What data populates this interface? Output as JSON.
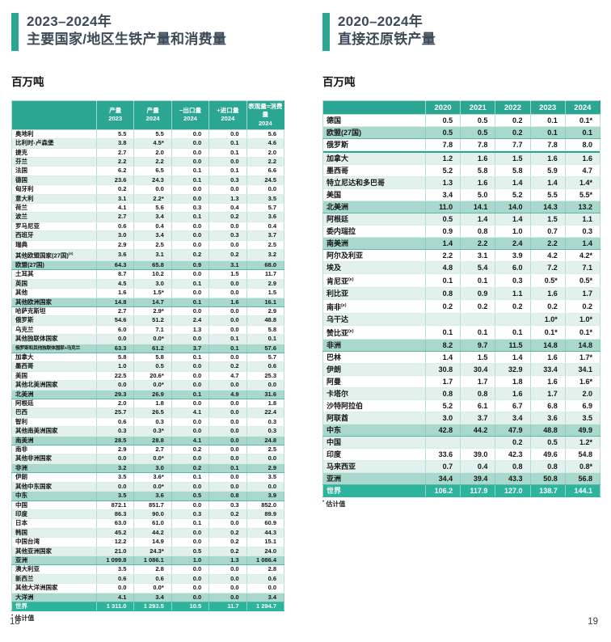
{
  "page": {
    "left_number": "18",
    "right_number": "19"
  },
  "colors": {
    "accent_teal": "#2aa693",
    "total_row_teal": "#2db49c",
    "subtotal_row": "#a9d8cc",
    "light_row": "#e3f1ec",
    "title_text": "#3d4a57"
  },
  "left": {
    "title_line1": "2023–2024年",
    "title_line2": "主要国家/地区生铁产量和消费量",
    "unit": "百万吨",
    "footnote_mark": "*",
    "footnote_text": " 估计值",
    "table": {
      "columns": [
        {
          "l1": "产量",
          "l2": "2023"
        },
        {
          "l1": "产量",
          "l2": "2024"
        },
        {
          "l1": "−出口量",
          "l2": "2024"
        },
        {
          "l1": "+进口量",
          "l2": "2024"
        },
        {
          "l1": "表观量=消费量",
          "l2": "2024"
        }
      ],
      "rows": [
        {
          "label": "奥地利",
          "v": [
            "5.5",
            "5.5",
            "0.0",
            "0.0",
            "5.6"
          ],
          "t": "d",
          "s": "w"
        },
        {
          "label": "比利时-卢森堡",
          "v": [
            "3.8",
            "4.5*",
            "0.0",
            "0.1",
            "4.6"
          ],
          "t": "d",
          "s": "l"
        },
        {
          "label": "捷克",
          "v": [
            "2.7",
            "2.0",
            "0.0",
            "0.1",
            "2.0"
          ],
          "t": "d",
          "s": "w"
        },
        {
          "label": "芬兰",
          "v": [
            "2.2",
            "2.2",
            "0.0",
            "0.0",
            "2.2"
          ],
          "t": "d",
          "s": "l"
        },
        {
          "label": "法国",
          "v": [
            "6.2",
            "6.5",
            "0.1",
            "0.1",
            "6.6"
          ],
          "t": "d",
          "s": "w"
        },
        {
          "label": "德国",
          "v": [
            "23.6",
            "24.3",
            "0.1",
            "0.3",
            "24.5"
          ],
          "t": "d",
          "s": "l"
        },
        {
          "label": "匈牙利",
          "v": [
            "0.2",
            "0.0",
            "0.0",
            "0.0",
            "0.0"
          ],
          "t": "d",
          "s": "w"
        },
        {
          "label": "意大利",
          "v": [
            "3.1",
            "2.2*",
            "0.0",
            "1.3",
            "3.5"
          ],
          "t": "d",
          "s": "l"
        },
        {
          "label": "荷兰",
          "v": [
            "4.1",
            "5.6",
            "0.3",
            "0.4",
            "5.7"
          ],
          "t": "d",
          "s": "w"
        },
        {
          "label": "波兰",
          "v": [
            "2.7",
            "3.4",
            "0.1",
            "0.2",
            "3.6"
          ],
          "t": "d",
          "s": "l"
        },
        {
          "label": "罗马尼亚",
          "v": [
            "0.6",
            "0.4",
            "0.0",
            "0.0",
            "0.4"
          ],
          "t": "d",
          "s": "w"
        },
        {
          "label": "西班牙",
          "v": [
            "3.0",
            "3.4",
            "0.0",
            "0.3",
            "3.7"
          ],
          "t": "d",
          "s": "l"
        },
        {
          "label": "瑞典",
          "v": [
            "2.9",
            "2.5",
            "0.0",
            "0.0",
            "2.5"
          ],
          "t": "d",
          "s": "w"
        },
        {
          "label": "其他欧盟国家(27国)",
          "sup": "(e)",
          "v": [
            "3.6",
            "3.1",
            "0.2",
            "0.2",
            "3.2"
          ],
          "t": "d",
          "s": "l"
        },
        {
          "label": "欧盟(27国)",
          "v": [
            "64.3",
            "65.8",
            "0.9",
            "3.1",
            "68.0"
          ],
          "t": "s"
        },
        {
          "label": "土耳其",
          "v": [
            "8.7",
            "10.2",
            "0.0",
            "1.5",
            "11.7"
          ],
          "t": "d",
          "s": "w"
        },
        {
          "label": "英国",
          "v": [
            "4.5",
            "3.0",
            "0.1",
            "0.0",
            "2.9"
          ],
          "t": "d",
          "s": "l"
        },
        {
          "label": "其他",
          "v": [
            "1.6",
            "1.5*",
            "0.0",
            "0.0",
            "1.5"
          ],
          "t": "d",
          "s": "w"
        },
        {
          "label": "其他欧洲国家",
          "v": [
            "14.8",
            "14.7",
            "0.1",
            "1.6",
            "16.1"
          ],
          "t": "s"
        },
        {
          "label": "哈萨克斯坦",
          "v": [
            "2.7",
            "2.9*",
            "0.0",
            "0.0",
            "2.9"
          ],
          "t": "d",
          "s": "w"
        },
        {
          "label": "俄罗斯",
          "v": [
            "54.6",
            "51.2",
            "2.4",
            "0.0",
            "48.8"
          ],
          "t": "d",
          "s": "l"
        },
        {
          "label": "乌克兰",
          "v": [
            "6.0",
            "7.1",
            "1.3",
            "0.0",
            "5.8"
          ],
          "t": "d",
          "s": "w"
        },
        {
          "label": "其他独联体国家",
          "v": [
            "0.0",
            "0.0*",
            "0.0",
            "0.1",
            "0.1"
          ],
          "t": "d",
          "s": "l"
        },
        {
          "label": "俄罗斯和其他独联体国家+乌克兰",
          "v": [
            "63.3",
            "61.2",
            "3.7",
            "0.1",
            "57.6"
          ],
          "t": "s",
          "small": true
        },
        {
          "label": "加拿大",
          "v": [
            "5.8",
            "5.8",
            "0.1",
            "0.0",
            "5.7"
          ],
          "t": "d",
          "s": "w"
        },
        {
          "label": "墨西哥",
          "v": [
            "1.0",
            "0.5",
            "0.0",
            "0.2",
            "0.6"
          ],
          "t": "d",
          "s": "l"
        },
        {
          "label": "美国",
          "v": [
            "22.5",
            "20.6*",
            "0.0",
            "4.7",
            "25.3"
          ],
          "t": "d",
          "s": "w"
        },
        {
          "label": "其他北美洲国家",
          "v": [
            "0.0",
            "0.0*",
            "0.0",
            "0.0",
            "0.0"
          ],
          "t": "d",
          "s": "l"
        },
        {
          "label": "北美洲",
          "v": [
            "29.3",
            "26.9",
            "0.1",
            "4.9",
            "31.6"
          ],
          "t": "s"
        },
        {
          "label": "阿根廷",
          "v": [
            "2.0",
            "1.8",
            "0.0",
            "0.0",
            "1.8"
          ],
          "t": "d",
          "s": "w"
        },
        {
          "label": "巴西",
          "v": [
            "25.7",
            "26.5",
            "4.1",
            "0.0",
            "22.4"
          ],
          "t": "d",
          "s": "l"
        },
        {
          "label": "智利",
          "v": [
            "0.6",
            "0.3",
            "0.0",
            "0.0",
            "0.3"
          ],
          "t": "d",
          "s": "w"
        },
        {
          "label": "其他南美洲国家",
          "v": [
            "0.3",
            "0.3*",
            "0.0",
            "0.0",
            "0.3"
          ],
          "t": "d",
          "s": "l"
        },
        {
          "label": "南美洲",
          "v": [
            "28.5",
            "28.8",
            "4.1",
            "0.0",
            "24.8"
          ],
          "t": "s"
        },
        {
          "label": "南非",
          "v": [
            "2.9",
            "2.7",
            "0.2",
            "0.0",
            "2.5"
          ],
          "t": "d",
          "s": "w"
        },
        {
          "label": "其他非洲国家",
          "v": [
            "0.0",
            "0.0*",
            "0.0",
            "0.0",
            "0.0"
          ],
          "t": "d",
          "s": "l"
        },
        {
          "label": "非洲",
          "v": [
            "3.2",
            "3.0",
            "0.2",
            "0.1",
            "2.9"
          ],
          "t": "s"
        },
        {
          "label": "伊朗",
          "v": [
            "3.5",
            "3.6*",
            "0.1",
            "0.0",
            "3.5"
          ],
          "t": "d",
          "s": "w"
        },
        {
          "label": "其他中东国家",
          "v": [
            "0.0",
            "0.0*",
            "0.0",
            "0.0",
            "0.0"
          ],
          "t": "d",
          "s": "l"
        },
        {
          "label": "中东",
          "v": [
            "3.5",
            "3.6",
            "0.5",
            "0.8",
            "3.9"
          ],
          "t": "s"
        },
        {
          "label": "中国",
          "v": [
            "872.1",
            "851.7",
            "0.0",
            "0.3",
            "852.0"
          ],
          "t": "d",
          "s": "w"
        },
        {
          "label": "印度",
          "v": [
            "86.3",
            "90.0",
            "0.3",
            "0.2",
            "89.9"
          ],
          "t": "d",
          "s": "l"
        },
        {
          "label": "日本",
          "v": [
            "63.0",
            "61.0",
            "0.1",
            "0.0",
            "60.9"
          ],
          "t": "d",
          "s": "w"
        },
        {
          "label": "韩国",
          "v": [
            "45.2",
            "44.2",
            "0.0",
            "0.2",
            "44.3"
          ],
          "t": "d",
          "s": "l"
        },
        {
          "label": "中国台湾",
          "v": [
            "12.2",
            "14.9",
            "0.0",
            "0.2",
            "15.1"
          ],
          "t": "d",
          "s": "w"
        },
        {
          "label": "其他亚洲国家",
          "v": [
            "21.0",
            "24.3*",
            "0.5",
            "0.2",
            "24.0"
          ],
          "t": "d",
          "s": "l"
        },
        {
          "label": "亚洲",
          "v": [
            "1 099.8",
            "1 086.1",
            "1.0",
            "1.3",
            "1 086.4"
          ],
          "t": "s"
        },
        {
          "label": "澳大利亚",
          "v": [
            "3.5",
            "2.8",
            "0.0",
            "0.0",
            "2.8"
          ],
          "t": "d",
          "s": "w"
        },
        {
          "label": "新西兰",
          "v": [
            "0.6",
            "0.6",
            "0.0",
            "0.0",
            "0.6"
          ],
          "t": "d",
          "s": "l"
        },
        {
          "label": "其他大洋洲国家",
          "v": [
            "0.0",
            "0.0*",
            "0.0",
            "0.0",
            "0.0"
          ],
          "t": "d",
          "s": "w"
        },
        {
          "label": "大洋洲",
          "v": [
            "4.1",
            "3.4",
            "0.0",
            "0.0",
            "3.4"
          ],
          "t": "s"
        },
        {
          "label": "世界",
          "v": [
            "1 311.0",
            "1 293.5",
            "10.5",
            "11.7",
            "1 294.7"
          ],
          "t": "t"
        }
      ]
    }
  },
  "right": {
    "title_line1": "2020–2024年",
    "title_line2": "直接还原铁产量",
    "unit": "百万吨",
    "footnote_mark": "*",
    "footnote_text": " 估计值",
    "table": {
      "columns": [
        "2020",
        "2021",
        "2022",
        "2023",
        "2024"
      ],
      "rows": [
        {
          "label": "德国",
          "v": [
            "0.5",
            "0.5",
            "0.2",
            "0.1",
            "0.1*"
          ],
          "t": "d",
          "s": "w"
        },
        {
          "label": "欧盟(27国)",
          "v": [
            "0.5",
            "0.5",
            "0.2",
            "0.1",
            "0.1"
          ],
          "t": "s"
        },
        {
          "label": "俄罗斯",
          "v": [
            "7.8",
            "7.8",
            "7.7",
            "7.8",
            "8.0"
          ],
          "t": "d",
          "s": "w"
        },
        {
          "divider": true
        },
        {
          "label": "加拿大",
          "v": [
            "1.2",
            "1.6",
            "1.5",
            "1.6",
            "1.6"
          ],
          "t": "d",
          "s": "l"
        },
        {
          "label": "墨西哥",
          "v": [
            "5.2",
            "5.8",
            "5.8",
            "5.9",
            "4.7"
          ],
          "t": "d",
          "s": "w"
        },
        {
          "label": "特立尼达和多巴哥",
          "v": [
            "1.3",
            "1.6",
            "1.4",
            "1.4",
            "1.4*"
          ],
          "t": "d",
          "s": "l"
        },
        {
          "label": "美国",
          "v": [
            "3.4",
            "5.0",
            "5.2",
            "5.5",
            "5.5*"
          ],
          "t": "d",
          "s": "w"
        },
        {
          "label": "北美洲",
          "v": [
            "11.0",
            "14.1",
            "14.0",
            "14.3",
            "13.2"
          ],
          "t": "s"
        },
        {
          "label": "阿根廷",
          "v": [
            "0.5",
            "1.4",
            "1.4",
            "1.5",
            "1.1"
          ],
          "t": "d",
          "s": "l"
        },
        {
          "label": "委内瑞拉",
          "v": [
            "0.9",
            "0.8",
            "1.0",
            "0.7",
            "0.3"
          ],
          "t": "d",
          "s": "w"
        },
        {
          "label": "南美洲",
          "v": [
            "1.4",
            "2.2",
            "2.4",
            "2.2",
            "1.4"
          ],
          "t": "s"
        },
        {
          "label": "阿尔及利亚",
          "v": [
            "2.2",
            "3.1",
            "3.9",
            "4.2",
            "4.2*"
          ],
          "t": "d",
          "s": "w"
        },
        {
          "label": "埃及",
          "v": [
            "4.8",
            "5.4",
            "6.0",
            "7.2",
            "7.1"
          ],
          "t": "d",
          "s": "l"
        },
        {
          "label": "肯尼亚",
          "sup": "(e)",
          "v": [
            "0.1",
            "0.1",
            "0.3",
            "0.5*",
            "0.5*"
          ],
          "t": "d",
          "s": "w"
        },
        {
          "label": "利比亚",
          "v": [
            "0.8",
            "0.9",
            "1.1",
            "1.6",
            "1.7"
          ],
          "t": "d",
          "s": "l"
        },
        {
          "label": "南非",
          "sup": "(e)",
          "v": [
            "0.2",
            "0.2",
            "0.2",
            "0.2",
            "0.2"
          ],
          "t": "d",
          "s": "w"
        },
        {
          "label": "乌干达",
          "v": [
            "",
            "",
            "",
            "1.0*",
            "1.0*"
          ],
          "t": "d",
          "s": "l"
        },
        {
          "label": "赞比亚",
          "sup": "(e)",
          "v": [
            "0.1",
            "0.1",
            "0.1",
            "0.1*",
            "0.1*"
          ],
          "t": "d",
          "s": "w"
        },
        {
          "label": "非洲",
          "v": [
            "8.2",
            "9.7",
            "11.5",
            "14.8",
            "14.8"
          ],
          "t": "s"
        },
        {
          "label": "巴林",
          "v": [
            "1.4",
            "1.5",
            "1.4",
            "1.6",
            "1.7*"
          ],
          "t": "d",
          "s": "w"
        },
        {
          "label": "伊朗",
          "v": [
            "30.8",
            "30.4",
            "32.9",
            "33.4",
            "34.1"
          ],
          "t": "d",
          "s": "l"
        },
        {
          "label": "阿曼",
          "v": [
            "1.7",
            "1.7",
            "1.8",
            "1.6",
            "1.6*"
          ],
          "t": "d",
          "s": "w"
        },
        {
          "label": "卡塔尔",
          "v": [
            "0.8",
            "0.8",
            "1.6",
            "1.7",
            "2.0"
          ],
          "t": "d",
          "s": "l"
        },
        {
          "label": "沙特阿拉伯",
          "v": [
            "5.2",
            "6.1",
            "6.7",
            "6.8",
            "6.9"
          ],
          "t": "d",
          "s": "w"
        },
        {
          "label": "阿联酋",
          "v": [
            "3.0",
            "3.7",
            "3.4",
            "3.6",
            "3.5"
          ],
          "t": "d",
          "s": "l"
        },
        {
          "label": "中东",
          "v": [
            "42.8",
            "44.2",
            "47.9",
            "48.8",
            "49.9"
          ],
          "t": "s"
        },
        {
          "label": "中国",
          "v": [
            "",
            "",
            "0.2",
            "0.5",
            "1.2*"
          ],
          "t": "d",
          "s": "l"
        },
        {
          "label": "印度",
          "v": [
            "33.6",
            "39.0",
            "42.3",
            "49.6",
            "54.8"
          ],
          "t": "d",
          "s": "w"
        },
        {
          "label": "马来西亚",
          "v": [
            "0.7",
            "0.4",
            "0.8",
            "0.8",
            "0.8*"
          ],
          "t": "d",
          "s": "l"
        },
        {
          "label": "亚洲",
          "v": [
            "34.4",
            "39.4",
            "43.3",
            "50.8",
            "56.8"
          ],
          "t": "s"
        },
        {
          "label": "世界",
          "v": [
            "106.2",
            "117.9",
            "127.0",
            "138.7",
            "144.1"
          ],
          "t": "t"
        }
      ]
    }
  }
}
